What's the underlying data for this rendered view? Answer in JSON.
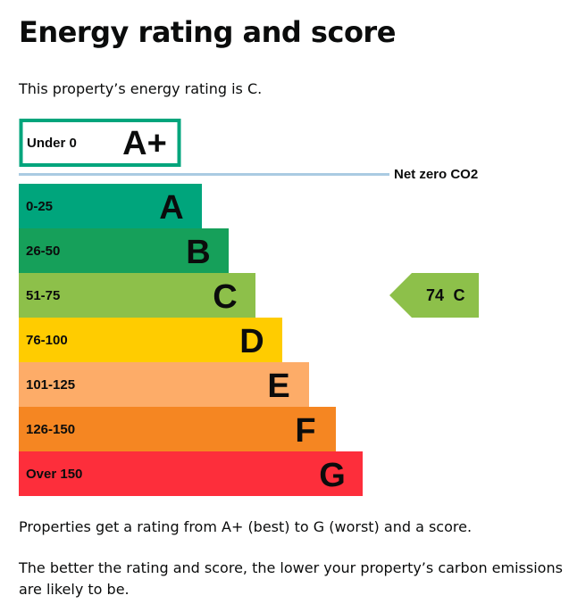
{
  "page": {
    "title": "Energy rating and score",
    "intro": "This property’s energy rating is C.",
    "paragraphs": [
      "Properties get a rating from A+ (best) to G (worst) and a score.",
      "The better the rating and score, the lower your property’s carbon emissions are likely to be."
    ]
  },
  "chart_data": {
    "type": "bar",
    "orientation": "horizontal",
    "title": "",
    "top_band": {
      "label": "Under 0",
      "letter": "A+",
      "border_color": "#00a57c"
    },
    "net_zero_label": "Net zero CO2",
    "net_zero_line_color": "#aacbe2",
    "bands": [
      {
        "range": "0-25",
        "letter": "A",
        "color": "#00a57c",
        "order": 1
      },
      {
        "range": "26-50",
        "letter": "B",
        "color": "#16a05a",
        "order": 2
      },
      {
        "range": "51-75",
        "letter": "C",
        "color": "#8dc04a",
        "order": 3
      },
      {
        "range": "76-100",
        "letter": "D",
        "color": "#ffcc00",
        "order": 4
      },
      {
        "range": "101-125",
        "letter": "E",
        "color": "#fdac68",
        "order": 5
      },
      {
        "range": "126-150",
        "letter": "F",
        "color": "#f58622",
        "order": 6
      },
      {
        "range": "Over 150",
        "letter": "G",
        "color": "#fd2e3b",
        "order": 7
      }
    ],
    "current_rating": {
      "score": "74",
      "letter": "C",
      "color": "#8dc04a"
    }
  }
}
